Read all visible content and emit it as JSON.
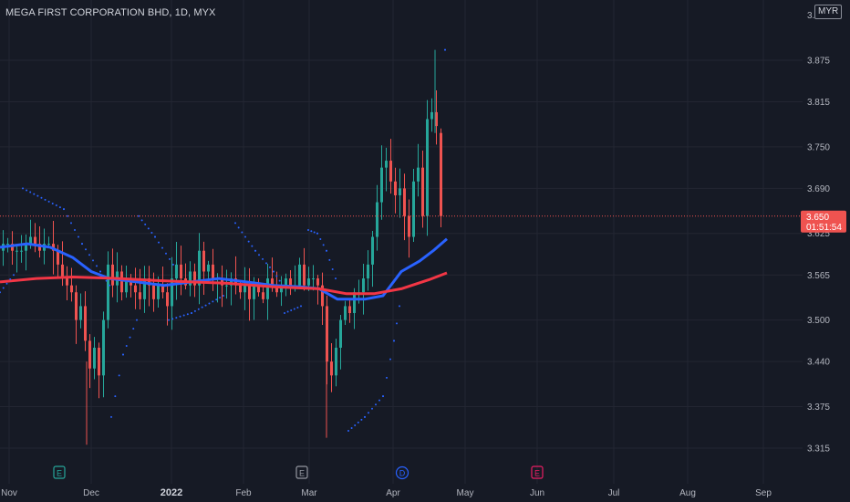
{
  "header": {
    "title": "MEGA FIRST CORPORATION BHD, 1D, MYX",
    "currency": "MYR"
  },
  "price_tag": {
    "price": "3.650",
    "countdown": "01:51:54"
  },
  "event_markers": [
    {
      "label": "E",
      "month": "Nov",
      "color": "#26a69a"
    },
    {
      "label": "E",
      "month": "Mar",
      "color": "#9598a1"
    },
    {
      "label": "D",
      "month": "Apr",
      "color": "#2962ff"
    },
    {
      "label": "E",
      "month": "May",
      "color": "#e91e63"
    }
  ],
  "chart_data": {
    "type": "candlestick",
    "title": "MEGA FIRST CORPORATION BHD, 1D, MYX",
    "y_axis": {
      "ticks": [
        3.315,
        3.375,
        3.44,
        3.5,
        3.565,
        3.625,
        3.69,
        3.75,
        3.815,
        3.875
      ],
      "range": [
        3.3,
        3.93
      ]
    },
    "x_axis": {
      "ticks": [
        "Nov",
        "Dec",
        "2022",
        "Feb",
        "Mar",
        "Apr",
        "May",
        "Jun",
        "Jul",
        "Aug",
        "Sep"
      ]
    },
    "last_price": 3.65,
    "series": [
      {
        "name": "candles",
        "approx_close": [
          3.61,
          3.61,
          3.6,
          3.6,
          3.6,
          3.61,
          3.62,
          3.61,
          3.6,
          3.61,
          3.61,
          3.6,
          3.58,
          3.56,
          3.55,
          3.54,
          3.5,
          3.52,
          3.47,
          3.43,
          3.46,
          3.42,
          3.5,
          3.58,
          3.55,
          3.57,
          3.54,
          3.56,
          3.55,
          3.54,
          3.53,
          3.56,
          3.55,
          3.53,
          3.55,
          3.54,
          3.52,
          3.56,
          3.58,
          3.56,
          3.55,
          3.57,
          3.55,
          3.6,
          3.57,
          3.58,
          3.56,
          3.56,
          3.55,
          3.55,
          3.56,
          3.55,
          3.54,
          3.55,
          3.53,
          3.55,
          3.54,
          3.53,
          3.56,
          3.55,
          3.54,
          3.55,
          3.56,
          3.55,
          3.55,
          3.58,
          3.55,
          3.56,
          3.56,
          3.55,
          3.52,
          3.44,
          3.42,
          3.46,
          3.5,
          3.52,
          3.51,
          3.54,
          3.54,
          3.56,
          3.58,
          3.62,
          3.67,
          3.72,
          3.73,
          3.7,
          3.68,
          3.69,
          3.65,
          3.62,
          3.7,
          3.72,
          3.65,
          3.79,
          3.8,
          3.78,
          3.65
        ]
      },
      {
        "name": "MA fast",
        "color": "#2962ff"
      },
      {
        "name": "MA slow",
        "color": "#f23645"
      },
      {
        "name": "Parabolic SAR",
        "color": "#2962ff"
      }
    ]
  }
}
